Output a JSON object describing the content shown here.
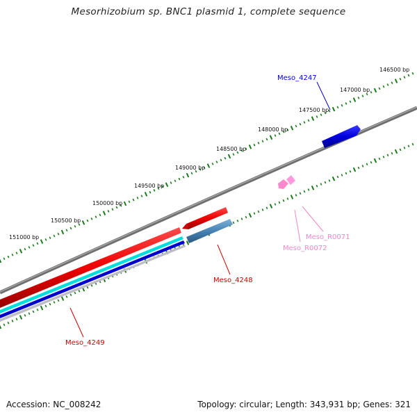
{
  "title": "Mesorhizobium sp. BNC1 plasmid 1, complete sequence",
  "footer": {
    "accession_text": "Accession: NC_008242",
    "topology_text": "Topology: circular; Length: 343,931 bp; Genes: 321"
  },
  "ruler": {
    "labels": [
      "146500 bp",
      "147000 bp",
      "147500 bp",
      "148000 bp",
      "148500 bp",
      "149000 bp",
      "149500 bp",
      "150000 bp",
      "150500 bp",
      "151000 bp"
    ],
    "tick_color": "#1a7a1a"
  },
  "genes": [
    {
      "name": "Meso_4247",
      "color": "#0000cc"
    },
    {
      "name": "Meso_4248",
      "color": "#cc0000"
    },
    {
      "name": "Meso_4249",
      "color": "#cc0000"
    },
    {
      "name": "Meso_R0071",
      "color": "#ee88cc"
    },
    {
      "name": "Meso_R0072",
      "color": "#ee88cc"
    }
  ],
  "colors": {
    "backbone": "#808080",
    "red_feature": "#ee0000",
    "blue_feature": "#0000dd",
    "steel_feature": "#4682b4",
    "cyan_feature": "#00e5e5",
    "pink_feature": "#ff99dd"
  }
}
